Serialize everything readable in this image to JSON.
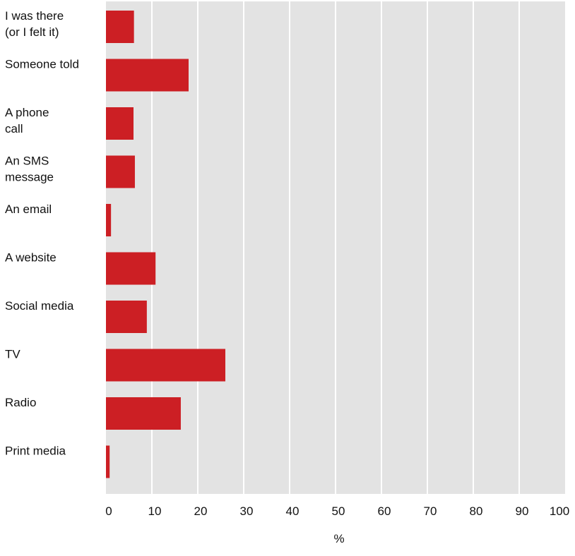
{
  "chart_data": {
    "type": "bar",
    "orientation": "horizontal",
    "categories": [
      "I was there\n(or I felt it)",
      "Someone told",
      "A phone\ncall",
      "An SMS\nmessage",
      "An email",
      "A website",
      "Social media",
      "TV",
      "Radio",
      "Print media"
    ],
    "values": [
      6.1,
      18,
      6,
      6.3,
      1.1,
      10.8,
      8.9,
      26,
      16.3,
      0.8
    ],
    "xlim": [
      0,
      100
    ],
    "xticks": [
      0,
      10,
      20,
      30,
      40,
      50,
      60,
      70,
      80,
      90,
      100
    ],
    "xlabel": "%",
    "ylabel": "",
    "title": "",
    "grid": true,
    "colors": {
      "bar": "#cc1f24",
      "plot_background": "#e3e3e3",
      "gridline": "#ffffff",
      "text": "#111111"
    }
  }
}
